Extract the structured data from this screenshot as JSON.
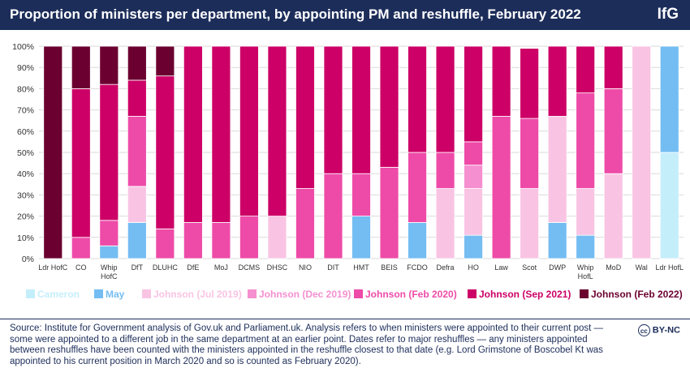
{
  "header": {
    "title": "Proportion of ministers per department, by appointing PM and reshuffle, February 2022",
    "logo": "IfG"
  },
  "footer": {
    "source": "Source: Institute for Government analysis of Gov.uk and Parliament.uk. Analysis refers to when ministers were appointed to their current post — some were appointed to a different job in the same department at an earlier point. Dates refer to major reshuffles — any ministers appointed between reshuffles have been counted with the ministers appointed in the reshuffle closest to that date (e.g. Lord Grimstone of Boscobel Kt was appointed to his current position in March 2020 and so is counted as February 2020).",
    "license": "BY-NC",
    "license_badge": "cc"
  },
  "colors": {
    "header_bg": "#1c2d5a",
    "Cameron": "#c5eefb",
    "May": "#74bdf2",
    "Johnson (Jul 2019)": "#f9c4e4",
    "Johnson (Dec 2019)": "#f58fd0",
    "Johnson (Feb 2020)": "#ee4ba9",
    "Johnson (Sep 2021)": "#cc0066",
    "Johnson (Feb 2022)": "#6b0030"
  },
  "chart_data": {
    "type": "bar",
    "stacked": true,
    "title": "Proportion of ministers per department, by appointing PM and reshuffle, February 2022",
    "categories": [
      "Ldr HofC",
      "CO",
      "Whip HofC",
      "DfT",
      "DLUHC",
      "DfE",
      "MoJ",
      "DCMS",
      "DHSC",
      "NIO",
      "DIT",
      "HMT",
      "BEIS",
      "FCDO",
      "Defra",
      "HO",
      "Law",
      "Scot",
      "DWP",
      "Whip HofL",
      "MoD",
      "Wal",
      "Ldr HofL"
    ],
    "category_labels": [
      [
        "Ldr HofC"
      ],
      [
        "CO"
      ],
      [
        "Whip",
        "HofC"
      ],
      [
        "DfT"
      ],
      [
        "DLUHC"
      ],
      [
        "DfE"
      ],
      [
        "MoJ"
      ],
      [
        "DCMS"
      ],
      [
        "DHSC"
      ],
      [
        "NIO"
      ],
      [
        "DIT"
      ],
      [
        "HMT"
      ],
      [
        "BEIS"
      ],
      [
        "FCDO"
      ],
      [
        "Defra"
      ],
      [
        "HO"
      ],
      [
        "Law"
      ],
      [
        "Scot"
      ],
      [
        "DWP"
      ],
      [
        "Whip",
        "HofL"
      ],
      [
        "MoD"
      ],
      [
        "Wal"
      ],
      [
        "Ldr HofL"
      ]
    ],
    "ylim": [
      0,
      100
    ],
    "yticks": [
      "0%",
      "10%",
      "20%",
      "30%",
      "40%",
      "50%",
      "60%",
      "70%",
      "80%",
      "90%",
      "100%"
    ],
    "legend_position": "bottom",
    "grid": true,
    "series": [
      {
        "name": "Cameron",
        "values": [
          0,
          0,
          0,
          0,
          0,
          0,
          0,
          0,
          0,
          0,
          0,
          0,
          0,
          0,
          0,
          0,
          0,
          0,
          0,
          0,
          0,
          0,
          50
        ]
      },
      {
        "name": "May",
        "values": [
          0,
          0,
          6,
          17,
          0,
          0,
          0,
          0,
          0,
          0,
          0,
          20,
          0,
          17,
          0,
          11,
          0,
          0,
          17,
          11,
          0,
          0,
          50
        ]
      },
      {
        "name": "Johnson (Jul 2019)",
        "values": [
          0,
          0,
          0,
          17,
          0,
          0,
          0,
          0,
          20,
          0,
          0,
          0,
          0,
          0,
          33,
          22,
          0,
          33,
          50,
          22,
          40,
          100,
          0
        ]
      },
      {
        "name": "Johnson (Dec 2019)",
        "values": [
          0,
          0,
          0,
          0,
          0,
          0,
          0,
          0,
          0,
          0,
          0,
          0,
          0,
          0,
          0,
          11,
          0,
          0,
          0,
          0,
          0,
          0,
          0
        ]
      },
      {
        "name": "Johnson (Feb 2020)",
        "values": [
          0,
          10,
          12,
          33,
          14,
          17,
          17,
          20,
          0,
          33,
          40,
          20,
          43,
          33,
          17,
          11,
          67,
          33,
          0,
          45,
          40,
          0,
          0
        ]
      },
      {
        "name": "Johnson (Sep 2021)",
        "values": [
          0,
          70,
          64,
          17,
          72,
          83,
          83,
          80,
          80,
          67,
          60,
          60,
          57,
          50,
          50,
          45,
          33,
          33,
          33,
          22,
          20,
          0,
          0
        ]
      },
      {
        "name": "Johnson (Feb 2022)",
        "values": [
          100,
          20,
          18,
          16,
          14,
          0,
          0,
          0,
          0,
          0,
          0,
          0,
          0,
          0,
          0,
          0,
          0,
          0,
          0,
          0,
          0,
          0,
          0
        ]
      }
    ]
  }
}
